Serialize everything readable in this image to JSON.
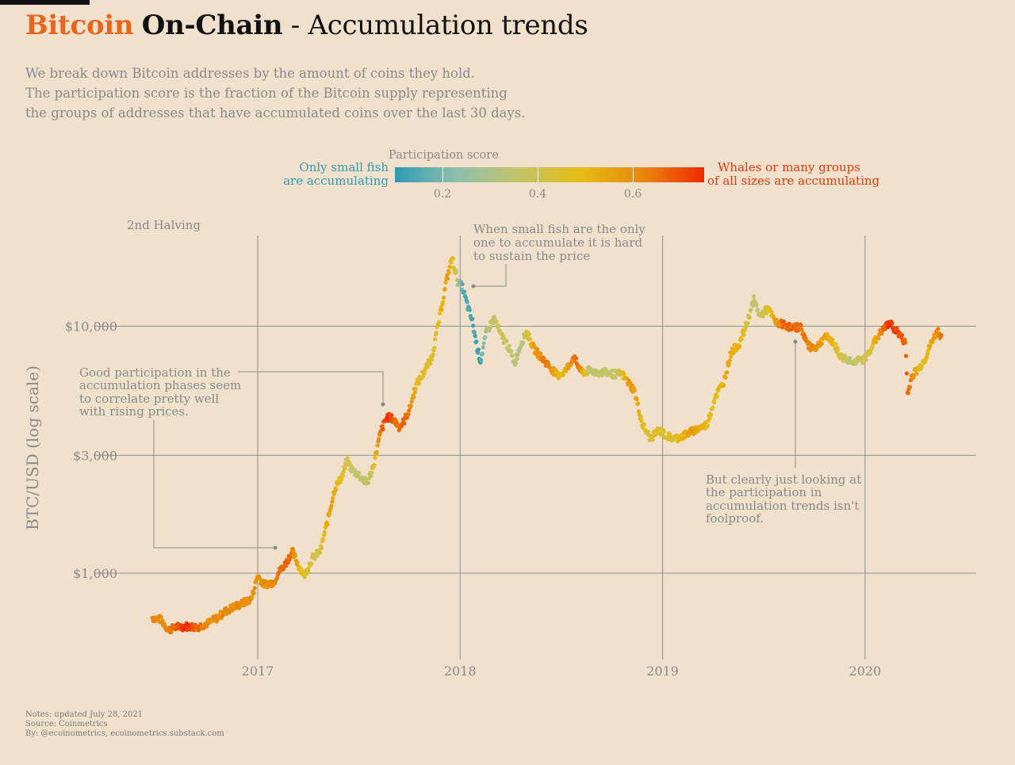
{
  "title": {
    "part1": "Bitcoin",
    "part2": "On-Chain",
    "part3": " - Accumulation trends",
    "part1_color": "#e8651c"
  },
  "subtitle": [
    "We break down Bitcoin addresses by the amount of coins they hold.",
    "The participation score is the fraction of the Bitcoin supply representing",
    "the groups of addresses that have accumulated coins over the last 30 days."
  ],
  "legend": {
    "title": "Participation score",
    "low_label": [
      "Only small fish",
      "are accumulating"
    ],
    "high_label": [
      "Whales or many groups",
      "of all sizes are accumulating"
    ],
    "ticks": [
      "0.2",
      "0.4",
      "0.6"
    ],
    "colors": [
      "#2f9bb4",
      "#8fbfac",
      "#c3c46a",
      "#e6bc14",
      "#e8880a",
      "#f02a00"
    ]
  },
  "notes": [
    "Notes: updated July 28, 2021",
    "Source: Coinmetrics",
    "By: @ecoinometrics, ecoinometrics.substack.com"
  ],
  "chart_data": {
    "type": "scatter",
    "scale_y": "log",
    "ylabel": "BTC/USD (log scale)",
    "y_ticks": [
      {
        "value": 1000,
        "label": "$1,000"
      },
      {
        "value": 3000,
        "label": "$3,000"
      },
      {
        "value": 10000,
        "label": "$10,000"
      }
    ],
    "x_ticks": [
      {
        "value": 2017,
        "label": "2017"
      },
      {
        "value": 2018,
        "label": "2018"
      },
      {
        "value": 2019,
        "label": "2019"
      },
      {
        "value": 2020,
        "label": "2020"
      }
    ],
    "xlim": [
      2016.45,
      2020.55
    ],
    "ylim": [
      450,
      25000
    ],
    "grid": true,
    "color_scale": {
      "min": 0.1,
      "max": 0.75
    },
    "halving_label": "2nd Halving",
    "annotations": {
      "small_fish": [
        "When small fish are the only",
        "one to accumulate it is hard",
        "to sustain the price"
      ],
      "good_participation": [
        "Good participation in the",
        "accumulation phases seem",
        "to correlate pretty well",
        "with rising prices."
      ],
      "foolproof": [
        "But clearly just looking at",
        "the participation in",
        "accumulation trends isn't",
        "foolproof."
      ]
    },
    "price_path": [
      [
        2016.48,
        660
      ],
      [
        2016.52,
        650
      ],
      [
        2016.56,
        590
      ],
      [
        2016.6,
        605
      ],
      [
        2016.65,
        610
      ],
      [
        2016.7,
        605
      ],
      [
        2016.76,
        630
      ],
      [
        2016.8,
        660
      ],
      [
        2016.84,
        700
      ],
      [
        2016.88,
        730
      ],
      [
        2016.92,
        750
      ],
      [
        2016.97,
        790
      ],
      [
        2017.0,
        980
      ],
      [
        2017.03,
        900
      ],
      [
        2017.08,
        920
      ],
      [
        2017.1,
        1000
      ],
      [
        2017.14,
        1100
      ],
      [
        2017.17,
        1230
      ],
      [
        2017.2,
        1080
      ],
      [
        2017.23,
        980
      ],
      [
        2017.27,
        1150
      ],
      [
        2017.31,
        1230
      ],
      [
        2017.35,
        1700
      ],
      [
        2017.38,
        2200
      ],
      [
        2017.42,
        2500
      ],
      [
        2017.44,
        2850
      ],
      [
        2017.47,
        2600
      ],
      [
        2017.5,
        2500
      ],
      [
        2017.54,
        2300
      ],
      [
        2017.57,
        2700
      ],
      [
        2017.61,
        3800
      ],
      [
        2017.64,
        4300
      ],
      [
        2017.67,
        4200
      ],
      [
        2017.7,
        3900
      ],
      [
        2017.72,
        4100
      ],
      [
        2017.75,
        4600
      ],
      [
        2017.78,
        5700
      ],
      [
        2017.82,
        6500
      ],
      [
        2017.86,
        7500
      ],
      [
        2017.9,
        11000
      ],
      [
        2017.93,
        15000
      ],
      [
        2017.96,
        19000
      ],
      [
        2017.99,
        15000
      ],
      [
        2018.01,
        14500
      ],
      [
        2018.04,
        11800
      ],
      [
        2018.06,
        10500
      ],
      [
        2018.08,
        8500
      ],
      [
        2018.1,
        7200
      ],
      [
        2018.13,
        9500
      ],
      [
        2018.17,
        10800
      ],
      [
        2018.2,
        9200
      ],
      [
        2018.23,
        8500
      ],
      [
        2018.27,
        7100
      ],
      [
        2018.3,
        8500
      ],
      [
        2018.33,
        9500
      ],
      [
        2018.36,
        8200
      ],
      [
        2018.4,
        7500
      ],
      [
        2018.44,
        6900
      ],
      [
        2018.48,
        6300
      ],
      [
        2018.52,
        6600
      ],
      [
        2018.56,
        7500
      ],
      [
        2018.6,
        6500
      ],
      [
        2018.64,
        6600
      ],
      [
        2018.68,
        6500
      ],
      [
        2018.72,
        6500
      ],
      [
        2018.76,
        6400
      ],
      [
        2018.8,
        6400
      ],
      [
        2018.86,
        5500
      ],
      [
        2018.9,
        4000
      ],
      [
        2018.94,
        3500
      ],
      [
        2018.98,
        3800
      ],
      [
        2019.02,
        3600
      ],
      [
        2019.06,
        3500
      ],
      [
        2019.1,
        3600
      ],
      [
        2019.16,
        3800
      ],
      [
        2019.22,
        4000
      ],
      [
        2019.26,
        5200
      ],
      [
        2019.3,
        5900
      ],
      [
        2019.34,
        7900
      ],
      [
        2019.38,
        8500
      ],
      [
        2019.42,
        10500
      ],
      [
        2019.45,
        12800
      ],
      [
        2019.48,
        11000
      ],
      [
        2019.52,
        11800
      ],
      [
        2019.56,
        10300
      ],
      [
        2019.6,
        10200
      ],
      [
        2019.64,
        9800
      ],
      [
        2019.68,
        10000
      ],
      [
        2019.72,
        8300
      ],
      [
        2019.76,
        8200
      ],
      [
        2019.8,
        9100
      ],
      [
        2019.84,
        8700
      ],
      [
        2019.88,
        7500
      ],
      [
        2019.92,
        7300
      ],
      [
        2019.96,
        7200
      ],
      [
        2020.0,
        7400
      ],
      [
        2020.04,
        8500
      ],
      [
        2020.08,
        9500
      ],
      [
        2020.12,
        10300
      ],
      [
        2020.16,
        9500
      ],
      [
        2020.2,
        8500
      ],
      [
        2020.21,
        5200
      ],
      [
        2020.23,
        6300
      ],
      [
        2020.27,
        6800
      ],
      [
        2020.3,
        7500
      ],
      [
        2020.33,
        8700
      ],
      [
        2020.36,
        9600
      ],
      [
        2020.38,
        8900
      ]
    ],
    "score_path": [
      [
        2016.48,
        0.62
      ],
      [
        2016.55,
        0.62
      ],
      [
        2016.65,
        0.75
      ],
      [
        2016.75,
        0.6
      ],
      [
        2016.85,
        0.62
      ],
      [
        2016.95,
        0.6
      ],
      [
        2017.05,
        0.6
      ],
      [
        2017.15,
        0.68
      ],
      [
        2017.22,
        0.48
      ],
      [
        2017.3,
        0.4
      ],
      [
        2017.36,
        0.58
      ],
      [
        2017.42,
        0.45
      ],
      [
        2017.48,
        0.36
      ],
      [
        2017.56,
        0.38
      ],
      [
        2017.6,
        0.62
      ],
      [
        2017.64,
        0.75
      ],
      [
        2017.68,
        0.66
      ],
      [
        2017.74,
        0.66
      ],
      [
        2017.8,
        0.45
      ],
      [
        2017.88,
        0.46
      ],
      [
        2017.94,
        0.56
      ],
      [
        2017.98,
        0.42
      ],
      [
        2018.01,
        0.15
      ],
      [
        2018.1,
        0.12
      ],
      [
        2018.14,
        0.35
      ],
      [
        2018.2,
        0.4
      ],
      [
        2018.3,
        0.3
      ],
      [
        2018.36,
        0.55
      ],
      [
        2018.42,
        0.66
      ],
      [
        2018.5,
        0.48
      ],
      [
        2018.58,
        0.68
      ],
      [
        2018.64,
        0.35
      ],
      [
        2018.78,
        0.38
      ],
      [
        2018.84,
        0.6
      ],
      [
        2018.92,
        0.45
      ],
      [
        2019.05,
        0.45
      ],
      [
        2019.15,
        0.58
      ],
      [
        2019.25,
        0.46
      ],
      [
        2019.32,
        0.55
      ],
      [
        2019.4,
        0.48
      ],
      [
        2019.46,
        0.34
      ],
      [
        2019.52,
        0.45
      ],
      [
        2019.6,
        0.68
      ],
      [
        2019.68,
        0.66
      ],
      [
        2019.75,
        0.6
      ],
      [
        2019.84,
        0.5
      ],
      [
        2019.92,
        0.34
      ],
      [
        2020.02,
        0.42
      ],
      [
        2020.08,
        0.62
      ],
      [
        2020.12,
        0.75
      ],
      [
        2020.18,
        0.68
      ],
      [
        2020.22,
        0.66
      ],
      [
        2020.28,
        0.44
      ],
      [
        2020.33,
        0.55
      ],
      [
        2020.38,
        0.66
      ]
    ]
  }
}
